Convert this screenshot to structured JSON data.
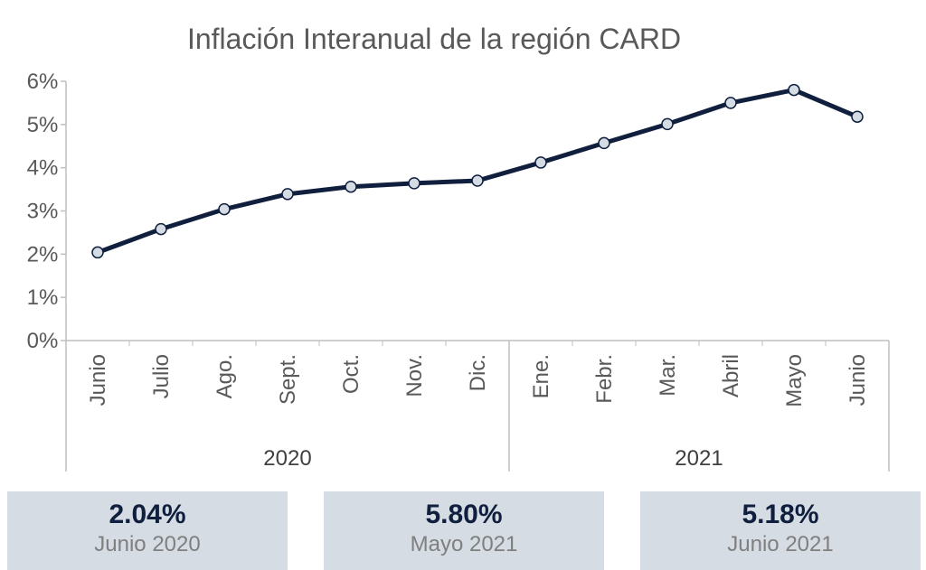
{
  "chart_data": {
    "type": "line",
    "title": "Inflación Interanual de la región CARD",
    "categories": [
      "Junio",
      "Julio",
      "Ago.",
      "Sept.",
      "Oct.",
      "Nov.",
      "Dic.",
      "Ene.",
      "Febr.",
      "Mar.",
      "Abril",
      "Mayo",
      "Junio"
    ],
    "groups": [
      {
        "label": "2020",
        "count": 7
      },
      {
        "label": "2021",
        "count": 6
      }
    ],
    "series": [
      {
        "values": [
          2.04,
          2.58,
          3.04,
          3.39,
          3.56,
          3.64,
          3.7,
          4.12,
          4.57,
          5.01,
          5.5,
          5.8,
          5.18
        ]
      }
    ],
    "ylim": [
      0,
      6
    ],
    "yticks": [
      "0%",
      "1%",
      "2%",
      "3%",
      "4%",
      "5%",
      "6%"
    ],
    "line_color": "#0f1f3d",
    "marker_fill": "#d5dce4",
    "grid": false
  },
  "summary": [
    {
      "value": "2.04%",
      "label": "Junio 2020"
    },
    {
      "value": "5.80%",
      "label": "Mayo 2021"
    },
    {
      "value": "5.18%",
      "label": "Junio 2021"
    }
  ]
}
